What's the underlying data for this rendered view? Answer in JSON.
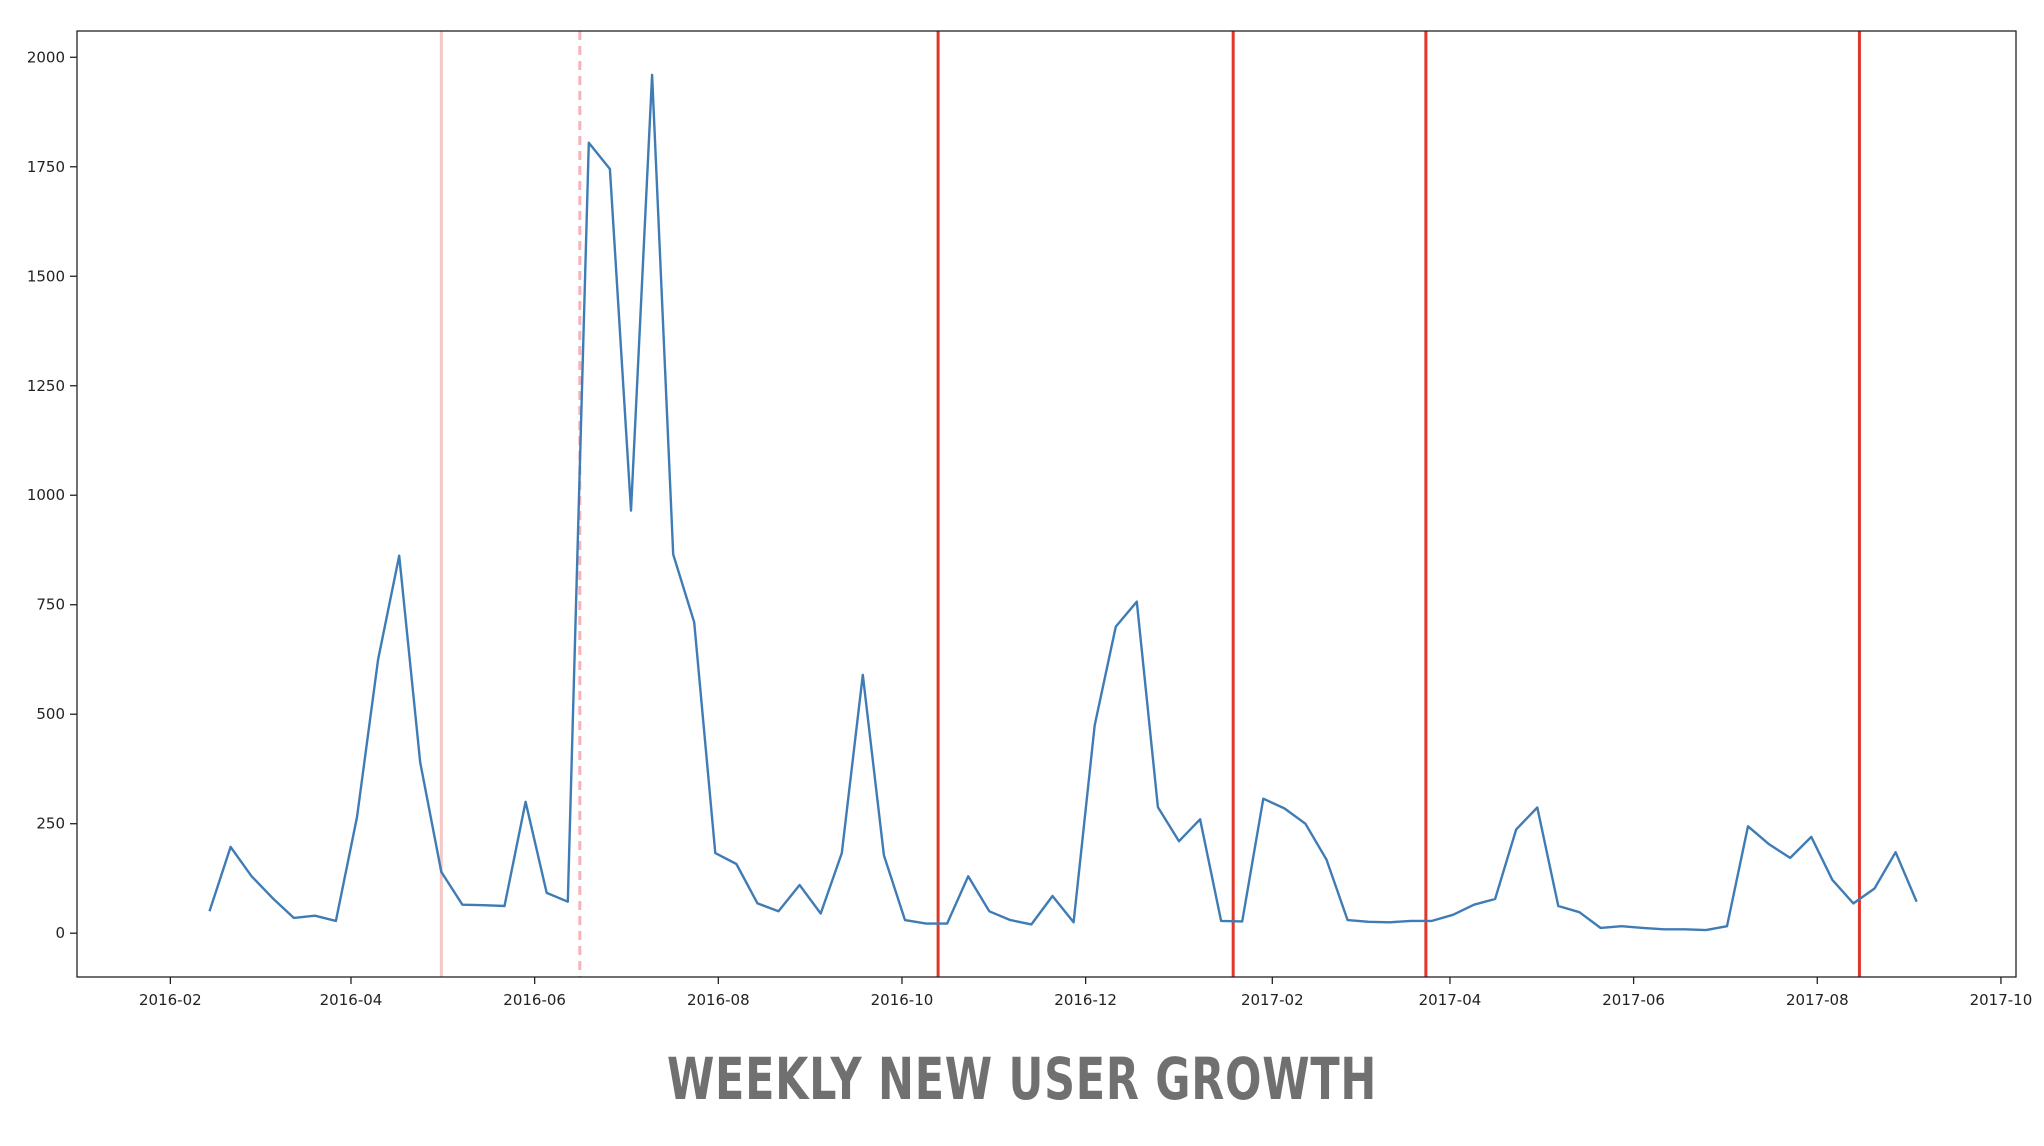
{
  "caption": "WEEKLY NEW USER GROWTH",
  "chart_data": {
    "type": "line",
    "title": "",
    "xlabel": "",
    "ylabel": "",
    "xlim": [
      "2016-01-01",
      "2017-10-06"
    ],
    "ylim": [
      -100,
      2060
    ],
    "grid": false,
    "x_ticks": [
      "2016-02",
      "2016-04",
      "2016-06",
      "2016-08",
      "2016-10",
      "2016-12",
      "2017-02",
      "2017-04",
      "2017-06",
      "2017-08",
      "2017-10"
    ],
    "y_ticks": [
      0,
      250,
      500,
      750,
      1000,
      1250,
      1500,
      1750,
      2000
    ],
    "series": [
      {
        "color": "#3f7cb5",
        "points": [
          [
            "2016-02-14",
            50
          ],
          [
            "2016-02-21",
            197
          ],
          [
            "2016-02-28",
            130
          ],
          [
            "2016-03-06",
            80
          ],
          [
            "2016-03-13",
            35
          ],
          [
            "2016-03-20",
            40
          ],
          [
            "2016-03-27",
            28
          ],
          [
            "2016-04-03",
            265
          ],
          [
            "2016-04-10",
            625
          ],
          [
            "2016-04-17",
            862
          ],
          [
            "2016-04-24",
            390
          ],
          [
            "2016-05-01",
            140
          ],
          [
            "2016-05-08",
            65
          ],
          [
            "2016-05-15",
            64
          ],
          [
            "2016-05-22",
            62
          ],
          [
            "2016-05-29",
            300
          ],
          [
            "2016-06-05",
            92
          ],
          [
            "2016-06-12",
            72
          ],
          [
            "2016-06-19",
            1805
          ],
          [
            "2016-06-26",
            1745
          ],
          [
            "2016-07-03",
            965
          ],
          [
            "2016-07-10",
            1960
          ],
          [
            "2016-07-17",
            865
          ],
          [
            "2016-07-24",
            710
          ],
          [
            "2016-07-31",
            183
          ],
          [
            "2016-08-07",
            158
          ],
          [
            "2016-08-14",
            68
          ],
          [
            "2016-08-21",
            50
          ],
          [
            "2016-08-28",
            110
          ],
          [
            "2016-09-04",
            45
          ],
          [
            "2016-09-11",
            183
          ],
          [
            "2016-09-18",
            590
          ],
          [
            "2016-09-25",
            178
          ],
          [
            "2016-10-02",
            30
          ],
          [
            "2016-10-09",
            22
          ],
          [
            "2016-10-16",
            22
          ],
          [
            "2016-10-23",
            130
          ],
          [
            "2016-10-30",
            50
          ],
          [
            "2016-11-06",
            30
          ],
          [
            "2016-11-13",
            20
          ],
          [
            "2016-11-20",
            85
          ],
          [
            "2016-11-27",
            25
          ],
          [
            "2016-12-04",
            475
          ],
          [
            "2016-12-11",
            700
          ],
          [
            "2016-12-18",
            757
          ],
          [
            "2016-12-25",
            288
          ],
          [
            "2017-01-01",
            210
          ],
          [
            "2017-01-08",
            260
          ],
          [
            "2017-01-15",
            28
          ],
          [
            "2017-01-22",
            27
          ],
          [
            "2017-01-29",
            307
          ],
          [
            "2017-02-05",
            285
          ],
          [
            "2017-02-12",
            250
          ],
          [
            "2017-02-19",
            168
          ],
          [
            "2017-02-26",
            30
          ],
          [
            "2017-03-05",
            26
          ],
          [
            "2017-03-12",
            25
          ],
          [
            "2017-03-19",
            28
          ],
          [
            "2017-03-26",
            28
          ],
          [
            "2017-04-02",
            42
          ],
          [
            "2017-04-09",
            65
          ],
          [
            "2017-04-16",
            78
          ],
          [
            "2017-04-23",
            237
          ],
          [
            "2017-04-30",
            287
          ],
          [
            "2017-05-07",
            62
          ],
          [
            "2017-05-14",
            48
          ],
          [
            "2017-05-21",
            12
          ],
          [
            "2017-05-28",
            16
          ],
          [
            "2017-06-04",
            12
          ],
          [
            "2017-06-11",
            9
          ],
          [
            "2017-06-18",
            9
          ],
          [
            "2017-06-25",
            7
          ],
          [
            "2017-07-02",
            16
          ],
          [
            "2017-07-09",
            244
          ],
          [
            "2017-07-16",
            203
          ],
          [
            "2017-07-23",
            172
          ],
          [
            "2017-07-30",
            220
          ],
          [
            "2017-08-06",
            122
          ],
          [
            "2017-08-13",
            68
          ],
          [
            "2017-08-20",
            102
          ],
          [
            "2017-08-27",
            185
          ],
          [
            "2017-09-03",
            72
          ]
        ]
      }
    ],
    "vlines": [
      {
        "x": "2016-05-01",
        "color": "#f5c7c7",
        "style": "solid"
      },
      {
        "x": "2016-06-16",
        "color": "#f7b3b8",
        "style": "dashed"
      },
      {
        "x": "2016-10-13",
        "color": "#e0372a",
        "style": "solid"
      },
      {
        "x": "2017-01-19",
        "color": "#e0372a",
        "style": "solid"
      },
      {
        "x": "2017-03-24",
        "color": "#e0372a",
        "style": "solid"
      },
      {
        "x": "2017-08-15",
        "color": "#e0372a",
        "style": "solid"
      }
    ]
  }
}
